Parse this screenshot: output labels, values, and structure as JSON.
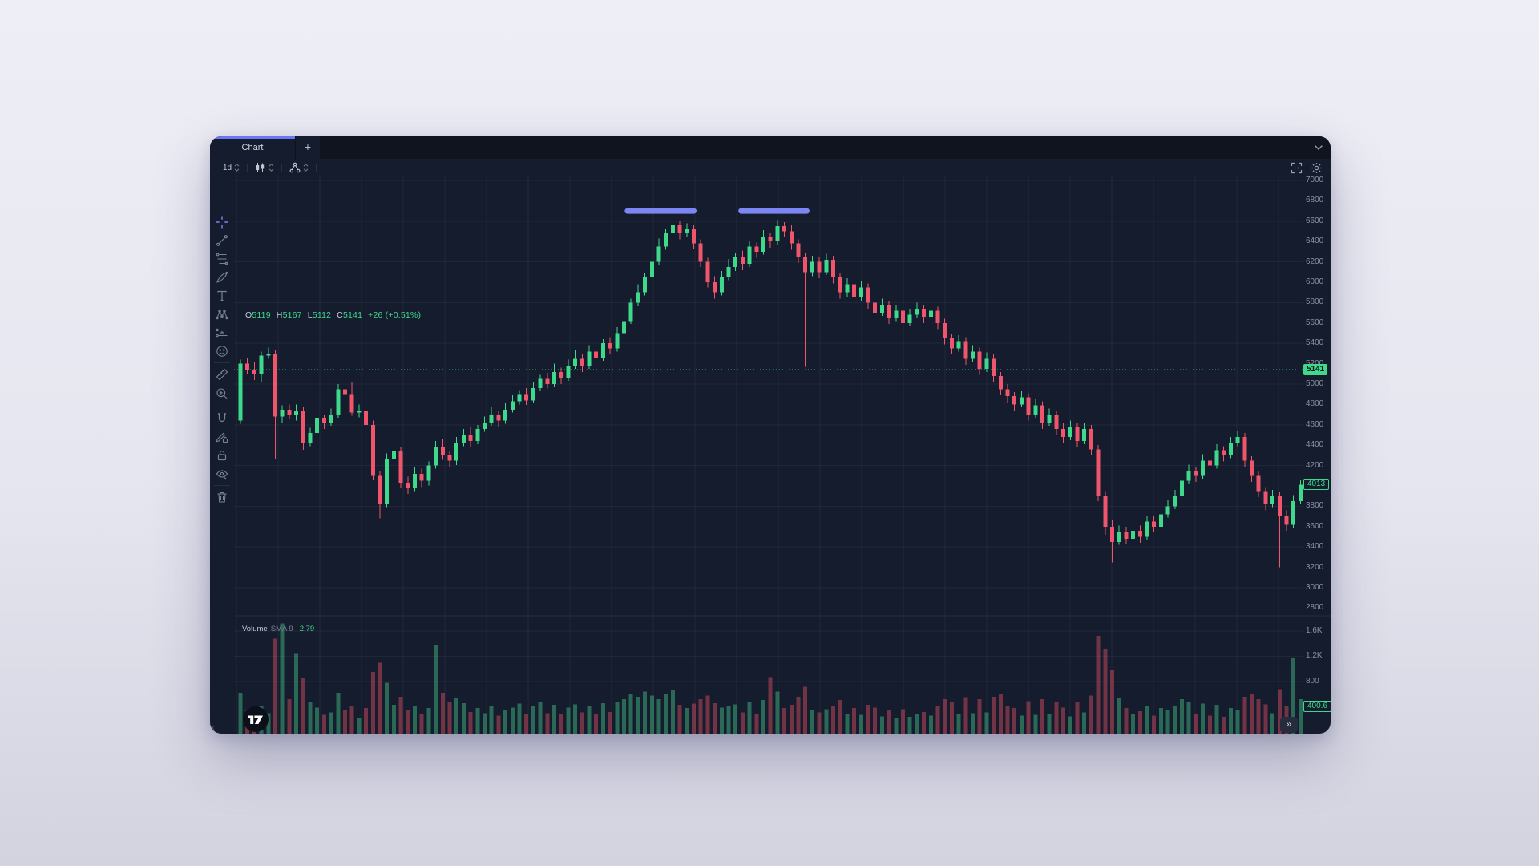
{
  "window": {
    "tab_label": "Chart",
    "new_tab_label": "+"
  },
  "toolbar": {
    "timeframe": "1d",
    "icons": [
      "interval-stepper",
      "candlestick-chart-type",
      "indicators",
      "fullscreen",
      "settings"
    ]
  },
  "left_toolbar": {
    "tools": [
      "crosshair",
      "trend-line",
      "fib-retracement",
      "brush",
      "text",
      "xabcd-pattern",
      "forecast-position",
      "emoji",
      "measure-ruler",
      "zoom-in",
      "magnet",
      "drawing-pencil-lock",
      "lock-all",
      "hide-all",
      "remove-drawings"
    ]
  },
  "legend": {
    "items": [
      {
        "label": "O",
        "value": "5119"
      },
      {
        "label": "H",
        "value": "5167"
      },
      {
        "label": "L",
        "value": "5112"
      },
      {
        "label": "C",
        "value": "5141"
      }
    ],
    "change": "+26 (+0.51%)"
  },
  "volume_legend": {
    "title": "Volume",
    "sma": "SMA 9",
    "value": "2.79"
  },
  "controls": {
    "expand": "»",
    "collapse": "‹"
  },
  "colors": {
    "up": "#3fd98c",
    "down": "#f0566b",
    "volume_up": "rgba(66,190,130,0.48)",
    "volume_down": "rgba(242,85,100,0.42)",
    "accent_tab": "#6d76f5",
    "drawing": "#7b86f3",
    "grid": "rgba(255,255,255,0.05)",
    "axis_text": "#8b92a3",
    "background": "#151c2e"
  },
  "price_axis": {
    "ticks": [
      {
        "label": "7000",
        "value": 7000
      },
      {
        "label": "6800",
        "value": 6800
      },
      {
        "label": "6600",
        "value": 6600
      },
      {
        "label": "6400",
        "value": 6400
      },
      {
        "label": "6200",
        "value": 6200
      },
      {
        "label": "6000",
        "value": 6000
      },
      {
        "label": "5800",
        "value": 5800
      },
      {
        "label": "5600",
        "value": 5600
      },
      {
        "label": "5400",
        "value": 5400
      },
      {
        "label": "5200",
        "value": 5200
      },
      {
        "label": "5000",
        "value": 5000
      },
      {
        "label": "4800",
        "value": 4800
      },
      {
        "label": "4600",
        "value": 4600
      },
      {
        "label": "4400",
        "value": 4400
      },
      {
        "label": "4200",
        "value": 4200
      },
      {
        "label": "3800",
        "value": 3800
      },
      {
        "label": "3600",
        "value": 3600
      },
      {
        "label": "3400",
        "value": 3400
      },
      {
        "label": "3200",
        "value": 3200
      },
      {
        "label": "3000",
        "value": 3000
      },
      {
        "label": "2800",
        "value": 2800
      }
    ],
    "badges": [
      {
        "label": "5141",
        "value": 5141,
        "style": "solid"
      },
      {
        "label": "4013",
        "value": 4013,
        "style": "outline"
      }
    ]
  },
  "volume_axis": {
    "ticks": [
      {
        "label": "1.6K",
        "value": 1600
      },
      {
        "label": "1.2K",
        "value": 1200
      },
      {
        "label": "800",
        "value": 800
      }
    ],
    "badge": {
      "label": "400.6",
      "value": 400.6
    }
  },
  "chart_data": {
    "type": "candlestick",
    "interval": "1d",
    "title": "",
    "legend_ohlc": {
      "open": 5119,
      "high": 5167,
      "low": 5112,
      "close": 5141,
      "change": 26,
      "change_pct": 0.51
    },
    "price_axis_range": [
      2800,
      7000
    ],
    "grid": true,
    "current_price_line": 5141,
    "last_visible_close": 4013,
    "current_volume": 400.6,
    "drawings": [
      {
        "type": "horizontal-segment",
        "price": 6700,
        "from_index": 55.5,
        "to_index": 65.0
      },
      {
        "type": "horizontal-segment",
        "price": 6700,
        "from_index": 71.8,
        "to_index": 81.2
      }
    ],
    "candles": [
      [
        4640,
        5240,
        4610,
        5200,
        620
      ],
      [
        5200,
        5260,
        5095,
        5140,
        340
      ],
      [
        5140,
        5220,
        5040,
        5100,
        280
      ],
      [
        5100,
        5320,
        5025,
        5280,
        410
      ],
      [
        5280,
        5360,
        5250,
        5300,
        300
      ],
      [
        5300,
        5340,
        4260,
        4680,
        1480
      ],
      [
        4680,
        4790,
        4620,
        4750,
        1720
      ],
      [
        4750,
        4800,
        4655,
        4700,
        520
      ],
      [
        4700,
        4800,
        4640,
        4740,
        1250
      ],
      [
        4740,
        4780,
        4355,
        4420,
        860
      ],
      [
        4420,
        4570,
        4390,
        4520,
        480
      ],
      [
        4520,
        4730,
        4475,
        4670,
        390
      ],
      [
        4670,
        4700,
        4560,
        4620,
        270
      ],
      [
        4620,
        4760,
        4590,
        4700,
        310
      ],
      [
        4700,
        5000,
        4670,
        4950,
        620
      ],
      [
        4950,
        4990,
        4855,
        4900,
        350
      ],
      [
        4900,
        5025,
        4690,
        4720,
        420
      ],
      [
        4720,
        4800,
        4675,
        4740,
        230
      ],
      [
        4740,
        4790,
        4540,
        4600,
        380
      ],
      [
        4600,
        4640,
        4060,
        4100,
        950
      ],
      [
        4100,
        4140,
        3680,
        3820,
        1100
      ],
      [
        3820,
        4320,
        3790,
        4260,
        780
      ],
      [
        4260,
        4400,
        4230,
        4340,
        430
      ],
      [
        4340,
        4380,
        3985,
        4030,
        560
      ],
      [
        4030,
        4090,
        3920,
        3980,
        340
      ],
      [
        3980,
        4180,
        3950,
        4120,
        410
      ],
      [
        4120,
        4170,
        3990,
        4050,
        290
      ],
      [
        4050,
        4240,
        4005,
        4200,
        380
      ],
      [
        4200,
        4440,
        4170,
        4380,
        1380
      ],
      [
        4380,
        4460,
        4255,
        4300,
        620
      ],
      [
        4300,
        4340,
        4190,
        4250,
        480
      ],
      [
        4250,
        4480,
        4205,
        4420,
        540
      ],
      [
        4420,
        4560,
        4390,
        4500,
        460
      ],
      [
        4500,
        4580,
        4380,
        4440,
        320
      ],
      [
        4440,
        4600,
        4410,
        4560,
        380
      ],
      [
        4560,
        4680,
        4530,
        4620,
        300
      ],
      [
        4620,
        4780,
        4590,
        4700,
        420
      ],
      [
        4700,
        4740,
        4580,
        4640,
        260
      ],
      [
        4640,
        4810,
        4610,
        4750,
        340
      ],
      [
        4750,
        4890,
        4720,
        4830,
        390
      ],
      [
        4830,
        4940,
        4800,
        4900,
        450
      ],
      [
        4900,
        4960,
        4795,
        4840,
        280
      ],
      [
        4840,
        5020,
        4810,
        4960,
        410
      ],
      [
        4960,
        5090,
        4930,
        5050,
        470
      ],
      [
        5050,
        5110,
        4955,
        5000,
        300
      ],
      [
        5000,
        5200,
        4970,
        5120,
        430
      ],
      [
        5120,
        5160,
        5000,
        5060,
        280
      ],
      [
        5060,
        5240,
        5030,
        5180,
        390
      ],
      [
        5180,
        5330,
        5150,
        5250,
        440
      ],
      [
        5250,
        5290,
        5120,
        5180,
        310
      ],
      [
        5180,
        5380,
        5150,
        5320,
        420
      ],
      [
        5320,
        5400,
        5215,
        5260,
        290
      ],
      [
        5260,
        5440,
        5230,
        5400,
        460
      ],
      [
        5400,
        5460,
        5290,
        5350,
        320
      ],
      [
        5350,
        5560,
        5320,
        5500,
        480
      ],
      [
        5500,
        5660,
        5470,
        5620,
        520
      ],
      [
        5620,
        5840,
        5590,
        5800,
        610
      ],
      [
        5800,
        5980,
        5770,
        5900,
        560
      ],
      [
        5900,
        6090,
        5870,
        6050,
        640
      ],
      [
        6050,
        6260,
        6020,
        6200,
        580
      ],
      [
        6200,
        6430,
        6170,
        6350,
        520
      ],
      [
        6350,
        6520,
        6320,
        6480,
        610
      ],
      [
        6480,
        6620,
        6450,
        6560,
        660
      ],
      [
        6560,
        6600,
        6420,
        6480,
        430
      ],
      [
        6480,
        6580,
        6440,
        6520,
        380
      ],
      [
        6520,
        6560,
        6330,
        6380,
        450
      ],
      [
        6380,
        6420,
        6150,
        6200,
        520
      ],
      [
        6200,
        6240,
        5950,
        6000,
        580
      ],
      [
        6000,
        6060,
        5840,
        5900,
        460
      ],
      [
        5900,
        6110,
        5870,
        6050,
        390
      ],
      [
        6050,
        6230,
        6020,
        6150,
        420
      ],
      [
        6150,
        6290,
        6110,
        6250,
        440
      ],
      [
        6250,
        6310,
        6120,
        6180,
        310
      ],
      [
        6180,
        6410,
        6150,
        6350,
        480
      ],
      [
        6350,
        6390,
        6240,
        6300,
        290
      ],
      [
        6300,
        6510,
        6270,
        6450,
        510
      ],
      [
        6450,
        6490,
        6340,
        6400,
        870
      ],
      [
        6400,
        6610,
        6370,
        6550,
        640
      ],
      [
        6550,
        6590,
        6440,
        6500,
        380
      ],
      [
        6500,
        6560,
        6320,
        6380,
        430
      ],
      [
        6380,
        6420,
        6190,
        6250,
        560
      ],
      [
        6250,
        6290,
        5170,
        6100,
        720
      ],
      [
        6100,
        6260,
        6060,
        6200,
        340
      ],
      [
        6200,
        6250,
        6040,
        6100,
        310
      ],
      [
        6100,
        6280,
        6070,
        6220,
        360
      ],
      [
        6220,
        6260,
        5990,
        6050,
        420
      ],
      [
        6050,
        6090,
        5840,
        5900,
        510
      ],
      [
        5900,
        6040,
        5860,
        5980,
        290
      ],
      [
        5980,
        6020,
        5790,
        5850,
        380
      ],
      [
        5850,
        6010,
        5820,
        5950,
        270
      ],
      [
        5950,
        5990,
        5740,
        5800,
        430
      ],
      [
        5800,
        5840,
        5640,
        5700,
        390
      ],
      [
        5700,
        5840,
        5670,
        5780,
        250
      ],
      [
        5780,
        5820,
        5590,
        5650,
        340
      ],
      [
        5650,
        5780,
        5620,
        5720,
        230
      ],
      [
        5720,
        5760,
        5540,
        5600,
        360
      ],
      [
        5600,
        5740,
        5570,
        5680,
        240
      ],
      [
        5680,
        5800,
        5650,
        5740,
        280
      ],
      [
        5740,
        5780,
        5600,
        5660,
        320
      ],
      [
        5660,
        5780,
        5630,
        5720,
        260
      ],
      [
        5720,
        5760,
        5540,
        5600,
        410
      ],
      [
        5600,
        5640,
        5390,
        5450,
        520
      ],
      [
        5450,
        5490,
        5290,
        5350,
        480
      ],
      [
        5350,
        5480,
        5320,
        5420,
        290
      ],
      [
        5420,
        5460,
        5190,
        5250,
        550
      ],
      [
        5250,
        5380,
        5220,
        5320,
        300
      ],
      [
        5320,
        5360,
        5090,
        5150,
        520
      ],
      [
        5150,
        5310,
        5120,
        5250,
        310
      ],
      [
        5250,
        5290,
        5020,
        5080,
        560
      ],
      [
        5080,
        5120,
        4890,
        4950,
        610
      ],
      [
        4950,
        5000,
        4820,
        4880,
        420
      ],
      [
        4880,
        4920,
        4740,
        4800,
        380
      ],
      [
        4800,
        4930,
        4770,
        4870,
        260
      ],
      [
        4870,
        4910,
        4640,
        4700,
        490
      ],
      [
        4700,
        4850,
        4670,
        4790,
        270
      ],
      [
        4790,
        4830,
        4560,
        4620,
        520
      ],
      [
        4620,
        4760,
        4590,
        4700,
        280
      ],
      [
        4700,
        4740,
        4500,
        4560,
        470
      ],
      [
        4560,
        4620,
        4420,
        4480,
        390
      ],
      [
        4480,
        4640,
        4450,
        4580,
        250
      ],
      [
        4580,
        4620,
        4380,
        4440,
        480
      ],
      [
        4440,
        4620,
        4410,
        4560,
        310
      ],
      [
        4560,
        4600,
        4300,
        4360,
        580
      ],
      [
        4360,
        4400,
        3850,
        3900,
        1520
      ],
      [
        3900,
        3950,
        3520,
        3600,
        1320
      ],
      [
        3600,
        3660,
        3250,
        3450,
        980
      ],
      [
        3450,
        3610,
        3420,
        3550,
        540
      ],
      [
        3550,
        3600,
        3430,
        3480,
        380
      ],
      [
        3480,
        3620,
        3450,
        3560,
        290
      ],
      [
        3560,
        3610,
        3440,
        3500,
        330
      ],
      [
        3500,
        3710,
        3470,
        3650,
        420
      ],
      [
        3650,
        3700,
        3550,
        3600,
        260
      ],
      [
        3600,
        3780,
        3570,
        3720,
        380
      ],
      [
        3720,
        3860,
        3690,
        3800,
        340
      ],
      [
        3800,
        3960,
        3770,
        3900,
        410
      ],
      [
        3900,
        4110,
        3870,
        4050,
        520
      ],
      [
        4050,
        4210,
        4020,
        4150,
        480
      ],
      [
        4150,
        4190,
        4040,
        4100,
        280
      ],
      [
        4100,
        4310,
        4070,
        4250,
        450
      ],
      [
        4250,
        4290,
        4140,
        4200,
        260
      ],
      [
        4200,
        4410,
        4170,
        4350,
        430
      ],
      [
        4350,
        4390,
        4240,
        4300,
        240
      ],
      [
        4300,
        4480,
        4270,
        4420,
        380
      ],
      [
        4420,
        4540,
        4390,
        4480,
        350
      ],
      [
        4480,
        4520,
        4190,
        4250,
        560
      ],
      [
        4250,
        4290,
        4040,
        4100,
        610
      ],
      [
        4100,
        4140,
        3890,
        3950,
        520
      ],
      [
        3950,
        3990,
        3760,
        3820,
        440
      ],
      [
        3820,
        3960,
        3790,
        3900,
        300
      ],
      [
        3900,
        3940,
        3200,
        3700,
        680
      ],
      [
        3700,
        3760,
        3560,
        3620,
        420
      ],
      [
        3620,
        3910,
        3590,
        3850,
        1180
      ],
      [
        3850,
        4060,
        3820,
        4013,
        520
      ]
    ]
  }
}
